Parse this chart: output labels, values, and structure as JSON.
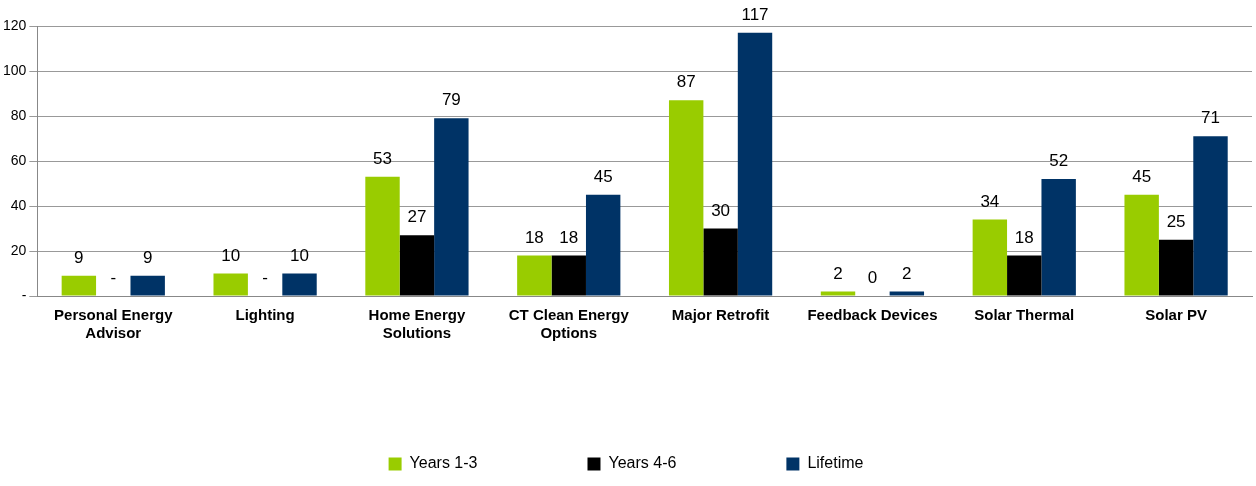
{
  "chart_data": {
    "type": "bar",
    "categories": [
      "Personal Energy Advisor",
      "Lighting",
      "Home Energy Solutions",
      "CT Clean Energy Options",
      "Major Retrofit",
      "Feedback Devices",
      "Solar Thermal",
      "Solar PV"
    ],
    "series": [
      {
        "name": "Years 1-3",
        "color": "#99cc00",
        "values": [
          9,
          10,
          53,
          18,
          87,
          2,
          34,
          45
        ],
        "value_labels": [
          "9",
          "10",
          "53",
          "18",
          "87",
          "2",
          "34",
          "45"
        ]
      },
      {
        "name": "Years 4-6",
        "color": "#000000",
        "values": [
          0,
          0,
          27,
          18,
          30,
          0,
          18,
          25
        ],
        "value_labels": [
          "-",
          "-",
          "27",
          "18",
          "30",
          "0",
          "18",
          "25"
        ]
      },
      {
        "name": "Lifetime",
        "color": "#003366",
        "values": [
          9,
          10,
          79,
          45,
          117,
          2,
          52,
          71
        ],
        "value_labels": [
          "9",
          "10",
          "79",
          "45",
          "117",
          "2",
          "52",
          "71"
        ]
      }
    ],
    "ylim": [
      0,
      120
    ],
    "yticks": [
      {
        "value": 0,
        "label": "-"
      },
      20,
      40,
      60,
      80,
      100,
      120
    ],
    "grid": "y",
    "legend": "bottom"
  }
}
